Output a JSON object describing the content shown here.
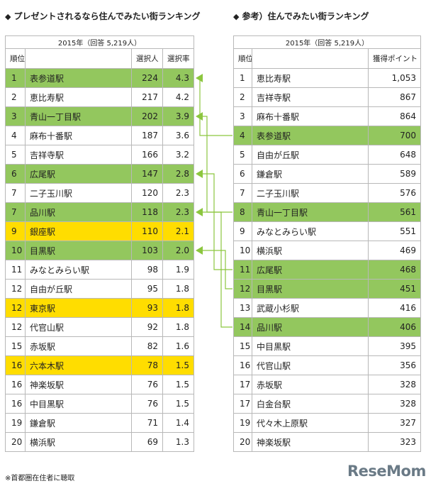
{
  "left": {
    "title": "プレゼントされるなら住んでみたい街ランキング",
    "caption": "2015年（回答 5,219人）",
    "headers": [
      "順位",
      "",
      "選択人",
      "選択率"
    ],
    "rows": [
      {
        "rank": "1",
        "station": "表参道駅",
        "count": "224",
        "rate": "4.3",
        "hl": "g"
      },
      {
        "rank": "2",
        "station": "恵比寿駅",
        "count": "217",
        "rate": "4.2",
        "hl": "w"
      },
      {
        "rank": "3",
        "station": "青山一丁目駅",
        "count": "202",
        "rate": "3.9",
        "hl": "g"
      },
      {
        "rank": "4",
        "station": "麻布十番駅",
        "count": "187",
        "rate": "3.6",
        "hl": "w"
      },
      {
        "rank": "5",
        "station": "吉祥寺駅",
        "count": "166",
        "rate": "3.2",
        "hl": "w"
      },
      {
        "rank": "6",
        "station": "広尾駅",
        "count": "147",
        "rate": "2.8",
        "hl": "g"
      },
      {
        "rank": "7",
        "station": "二子玉川駅",
        "count": "120",
        "rate": "2.3",
        "hl": "w"
      },
      {
        "rank": "7",
        "station": "品川駅",
        "count": "118",
        "rate": "2.3",
        "hl": "g"
      },
      {
        "rank": "9",
        "station": "銀座駅",
        "count": "110",
        "rate": "2.1",
        "hl": "y"
      },
      {
        "rank": "10",
        "station": "目黒駅",
        "count": "103",
        "rate": "2.0",
        "hl": "g"
      },
      {
        "rank": "11",
        "station": "みなとみらい駅",
        "count": "98",
        "rate": "1.9",
        "hl": "w"
      },
      {
        "rank": "12",
        "station": "自由が丘駅",
        "count": "95",
        "rate": "1.8",
        "hl": "w"
      },
      {
        "rank": "12",
        "station": "東京駅",
        "count": "93",
        "rate": "1.8",
        "hl": "y"
      },
      {
        "rank": "12",
        "station": "代官山駅",
        "count": "92",
        "rate": "1.8",
        "hl": "w"
      },
      {
        "rank": "15",
        "station": "赤坂駅",
        "count": "82",
        "rate": "1.6",
        "hl": "w"
      },
      {
        "rank": "16",
        "station": "六本木駅",
        "count": "78",
        "rate": "1.5",
        "hl": "y"
      },
      {
        "rank": "16",
        "station": "神楽坂駅",
        "count": "76",
        "rate": "1.5",
        "hl": "w"
      },
      {
        "rank": "16",
        "station": "中目黒駅",
        "count": "76",
        "rate": "1.5",
        "hl": "w"
      },
      {
        "rank": "19",
        "station": "鎌倉駅",
        "count": "71",
        "rate": "1.4",
        "hl": "w"
      },
      {
        "rank": "20",
        "station": "横浜駅",
        "count": "69",
        "rate": "1.3",
        "hl": "w"
      }
    ]
  },
  "right": {
    "title": "参考）住んでみたい街ランキング",
    "caption": "2015年（回答 5,219人）",
    "headers": [
      "順位",
      "",
      "獲得ポイント"
    ],
    "rows": [
      {
        "rank": "1",
        "station": "恵比寿駅",
        "points": "1,053",
        "hl": "w"
      },
      {
        "rank": "2",
        "station": "吉祥寺駅",
        "points": "867",
        "hl": "w"
      },
      {
        "rank": "3",
        "station": "麻布十番駅",
        "points": "864",
        "hl": "w"
      },
      {
        "rank": "4",
        "station": "表参道駅",
        "points": "700",
        "hl": "g"
      },
      {
        "rank": "5",
        "station": "自由が丘駅",
        "points": "648",
        "hl": "w"
      },
      {
        "rank": "6",
        "station": "鎌倉駅",
        "points": "589",
        "hl": "w"
      },
      {
        "rank": "7",
        "station": "二子玉川駅",
        "points": "576",
        "hl": "w"
      },
      {
        "rank": "8",
        "station": "青山一丁目駅",
        "points": "561",
        "hl": "g"
      },
      {
        "rank": "9",
        "station": "みなとみらい駅",
        "points": "551",
        "hl": "w"
      },
      {
        "rank": "10",
        "station": "横浜駅",
        "points": "469",
        "hl": "w"
      },
      {
        "rank": "11",
        "station": "広尾駅",
        "points": "468",
        "hl": "g"
      },
      {
        "rank": "12",
        "station": "目黒駅",
        "points": "451",
        "hl": "g"
      },
      {
        "rank": "13",
        "station": "武蔵小杉駅",
        "points": "416",
        "hl": "w"
      },
      {
        "rank": "14",
        "station": "品川駅",
        "points": "406",
        "hl": "g"
      },
      {
        "rank": "15",
        "station": "中目黒駅",
        "points": "395",
        "hl": "w"
      },
      {
        "rank": "16",
        "station": "代官山駅",
        "points": "356",
        "hl": "w"
      },
      {
        "rank": "17",
        "station": "赤坂駅",
        "points": "328",
        "hl": "w"
      },
      {
        "rank": "17",
        "station": "白金台駅",
        "points": "328",
        "hl": "w"
      },
      {
        "rank": "19",
        "station": "代々木上原駅",
        "points": "327",
        "hl": "w"
      },
      {
        "rank": "20",
        "station": "神楽坂駅",
        "points": "323",
        "hl": "w"
      }
    ]
  },
  "links": [
    {
      "from": 0,
      "to": 3
    },
    {
      "from": 2,
      "to": 7
    },
    {
      "from": 5,
      "to": 10
    },
    {
      "from": 7,
      "to": 13
    },
    {
      "from": 9,
      "to": 11
    }
  ],
  "colors": {
    "green": "#93c75e",
    "yellow": "#ffdd00",
    "connector": "#8cc63f"
  },
  "footnote": "※首都圏在住者に聴取",
  "logo": "ReseMom"
}
